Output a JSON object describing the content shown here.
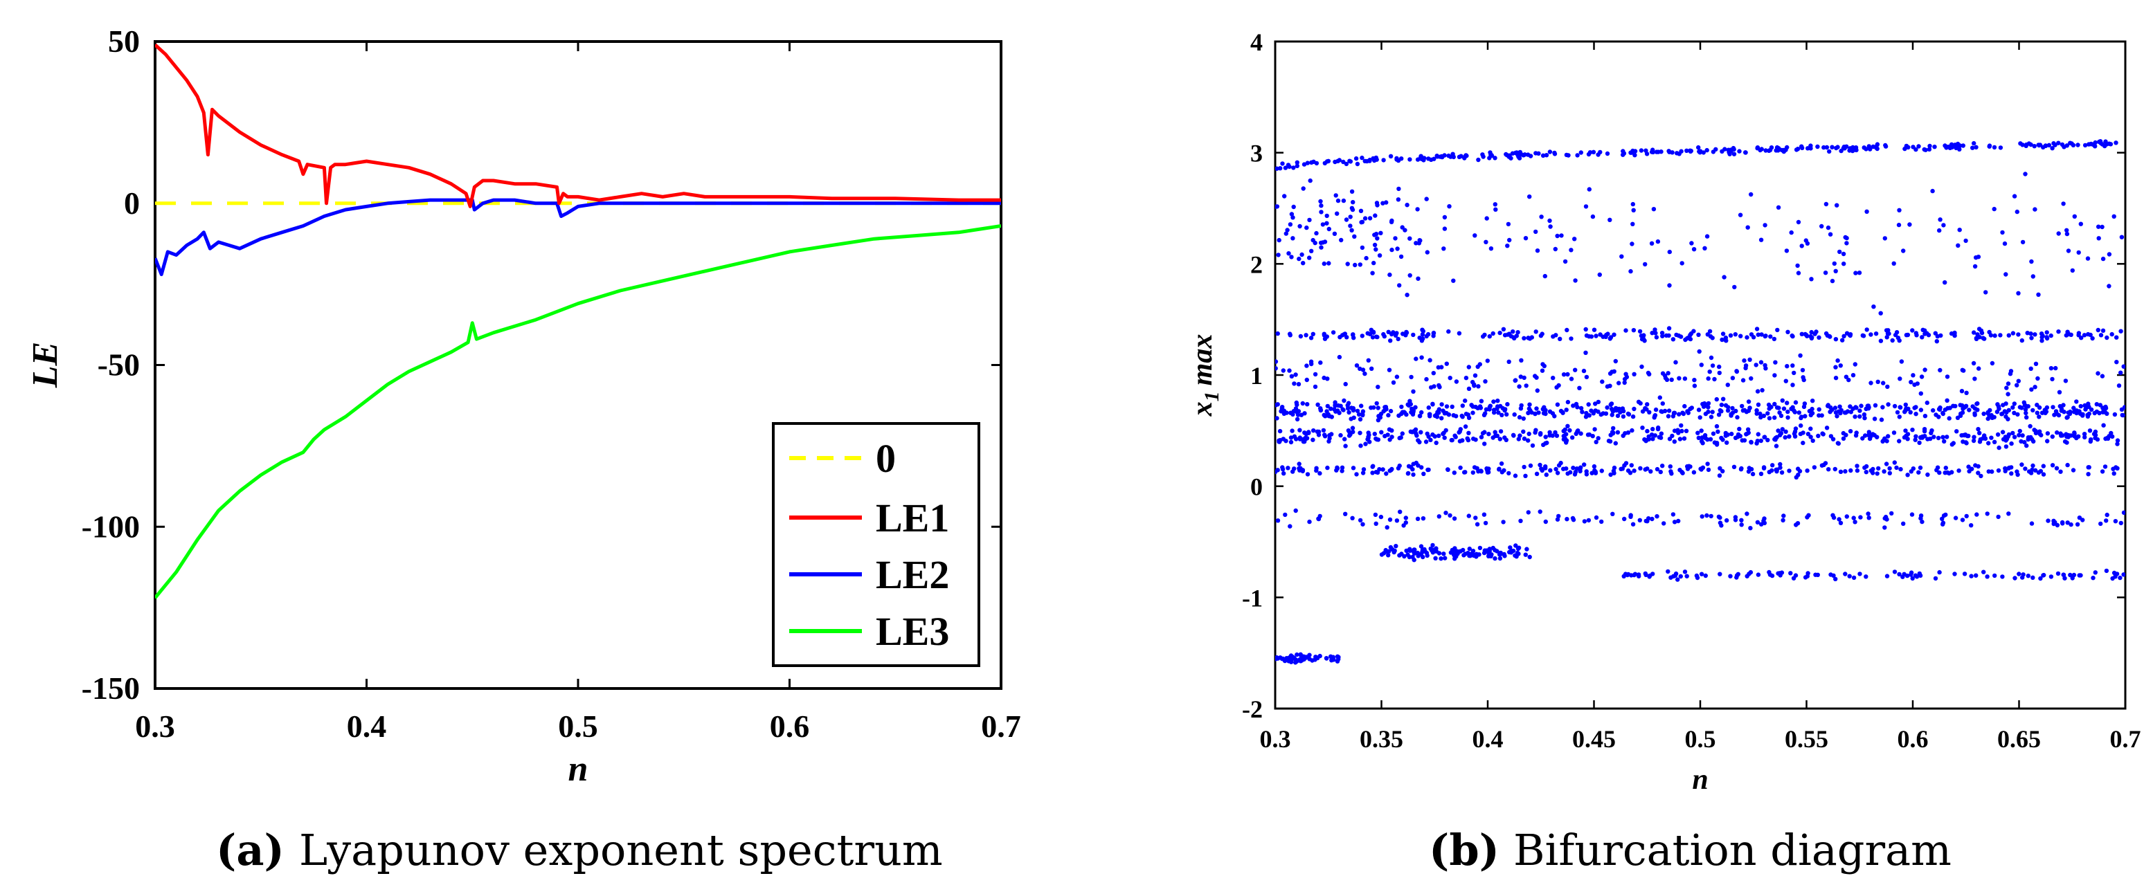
{
  "chart_data": [
    {
      "type": "line",
      "xlabel": "n",
      "ylabel": "LE",
      "xlim": [
        0.3,
        0.7
      ],
      "ylim": [
        -150,
        50
      ],
      "x_ticks": [
        "0.3",
        "0.4",
        "0.5",
        "0.6",
        "0.7"
      ],
      "y_ticks": [
        "50",
        "0",
        "-50",
        "-100",
        "-150"
      ],
      "legend_position": "bottom-right",
      "caption_letter": "(a)",
      "caption_text": "Lyapunov exponent spectrum",
      "series": [
        {
          "name": "0",
          "color": "#ffff00",
          "style": "dashed",
          "x": [
            0.3,
            0.7
          ],
          "y": [
            0,
            0
          ]
        },
        {
          "name": "LE1",
          "color": "#ff0000",
          "style": "solid",
          "x": [
            0.3,
            0.305,
            0.31,
            0.315,
            0.32,
            0.323,
            0.325,
            0.327,
            0.33,
            0.34,
            0.35,
            0.36,
            0.368,
            0.37,
            0.372,
            0.38,
            0.381,
            0.383,
            0.385,
            0.39,
            0.4,
            0.41,
            0.42,
            0.43,
            0.44,
            0.447,
            0.449,
            0.451,
            0.455,
            0.46,
            0.47,
            0.48,
            0.49,
            0.491,
            0.493,
            0.495,
            0.5,
            0.51,
            0.52,
            0.53,
            0.54,
            0.55,
            0.56,
            0.58,
            0.6,
            0.62,
            0.65,
            0.68,
            0.7
          ],
          "y": [
            49,
            46,
            42,
            38,
            33,
            28,
            15,
            29,
            27,
            22,
            18,
            15,
            13,
            9,
            12,
            11,
            0,
            11,
            12,
            12,
            13,
            12,
            11,
            9,
            6,
            3,
            -1,
            5,
            7,
            7,
            6,
            6,
            5,
            0,
            3,
            2,
            2,
            1,
            2,
            3,
            2,
            3,
            2,
            2,
            2,
            1.5,
            1.5,
            1,
            1
          ]
        },
        {
          "name": "LE2",
          "color": "#0000ff",
          "style": "solid",
          "x": [
            0.3,
            0.303,
            0.306,
            0.31,
            0.315,
            0.32,
            0.323,
            0.326,
            0.33,
            0.335,
            0.34,
            0.35,
            0.36,
            0.37,
            0.38,
            0.39,
            0.4,
            0.41,
            0.42,
            0.43,
            0.44,
            0.45,
            0.451,
            0.455,
            0.46,
            0.47,
            0.48,
            0.49,
            0.492,
            0.495,
            0.5,
            0.51,
            0.52,
            0.55,
            0.6,
            0.65,
            0.7
          ],
          "y": [
            -17,
            -22,
            -15,
            -16,
            -13,
            -11,
            -9,
            -14,
            -12,
            -13,
            -14,
            -11,
            -9,
            -7,
            -4,
            -2,
            -1,
            0,
            0.5,
            1,
            1,
            1,
            -2,
            0,
            1,
            1,
            0,
            0,
            -4,
            -3,
            -1,
            0,
            0,
            0,
            0,
            0,
            0
          ]
        },
        {
          "name": "LE3",
          "color": "#00ff00",
          "style": "solid",
          "x": [
            0.3,
            0.31,
            0.32,
            0.33,
            0.34,
            0.35,
            0.36,
            0.37,
            0.375,
            0.38,
            0.39,
            0.4,
            0.41,
            0.42,
            0.43,
            0.44,
            0.448,
            0.45,
            0.452,
            0.46,
            0.48,
            0.5,
            0.52,
            0.54,
            0.56,
            0.58,
            0.6,
            0.62,
            0.64,
            0.66,
            0.68,
            0.7
          ],
          "y": [
            -122,
            -114,
            -104,
            -95,
            -89,
            -84,
            -80,
            -77,
            -73,
            -70,
            -66,
            -61,
            -56,
            -52,
            -49,
            -46,
            -43,
            -37,
            -42,
            -40,
            -36,
            -31,
            -27,
            -24,
            -21,
            -18,
            -15,
            -13,
            -11,
            -10,
            -9,
            -7
          ]
        }
      ]
    },
    {
      "type": "scatter",
      "xlabel": "n",
      "ylabel": "x",
      "ylabel_sub": "1",
      "ylabel_suffix": "max",
      "xlim": [
        0.3,
        0.7
      ],
      "ylim": [
        -2,
        4
      ],
      "x_ticks": [
        "0.3",
        "0.35",
        "0.4",
        "0.45",
        "0.5",
        "0.55",
        "0.6",
        "0.65",
        "0.7"
      ],
      "y_ticks": [
        "4",
        "3",
        "2",
        "1",
        "0",
        "-1",
        "-2"
      ],
      "marker_color": "#0000ff",
      "caption_letter": "(b)",
      "caption_text": "Bifurcation diagram",
      "bands": [
        {
          "x0": 0.3,
          "x1": 0.7,
          "y_top": [
            2.86,
            3.08
          ],
          "spread": 0.04,
          "density": 300
        },
        {
          "x0": 0.3,
          "x1": 0.7,
          "y": 1.36,
          "spread": 0.07,
          "density": 260
        },
        {
          "x0": 0.3,
          "x1": 0.7,
          "y": 0.68,
          "spread": 0.12,
          "density": 520
        },
        {
          "x0": 0.3,
          "x1": 0.7,
          "y": 0.45,
          "spread": 0.12,
          "density": 420
        },
        {
          "x0": 0.3,
          "x1": 0.7,
          "y": 0.15,
          "spread": 0.08,
          "density": 260
        },
        {
          "x0": 0.3,
          "x1": 0.7,
          "y": -0.3,
          "spread": 0.1,
          "density": 140
        },
        {
          "x0": 0.35,
          "x1": 0.42,
          "y": -0.6,
          "spread": 0.08,
          "density": 120
        },
        {
          "x0": 0.46,
          "x1": 0.7,
          "y": -0.8,
          "spread": 0.05,
          "density": 110
        },
        {
          "x0": 0.3,
          "x1": 0.33,
          "y": -1.55,
          "spread": 0.05,
          "density": 60
        },
        {
          "x0": 0.3,
          "x1": 0.36,
          "y": 2.3,
          "spread": 0.7,
          "density": 90
        },
        {
          "x0": 0.36,
          "x1": 0.7,
          "y": 2.2,
          "spread": 0.75,
          "density": 150
        },
        {
          "x0": 0.3,
          "x1": 0.7,
          "y": 1.0,
          "spread": 0.25,
          "density": 200
        }
      ]
    }
  ]
}
